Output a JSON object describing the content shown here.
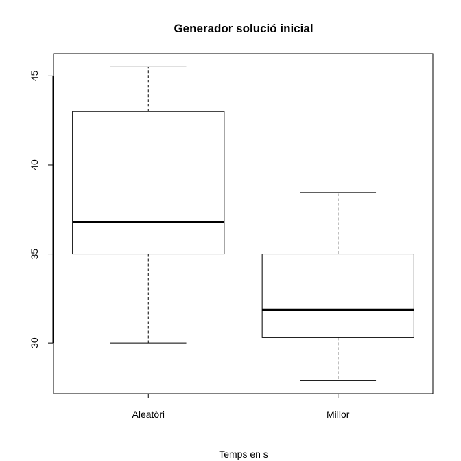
{
  "chart_data": {
    "type": "boxplot",
    "title": "Generador solució inicial",
    "xlabel": "Temps en s",
    "ylabel": "",
    "categories": [
      "Aleatòri",
      "Millor"
    ],
    "boxes": [
      {
        "name": "Aleatòri",
        "whisker_low": 30.0,
        "q1": 35.0,
        "median": 36.8,
        "q3": 43.0,
        "whisker_high": 45.5
      },
      {
        "name": "Millor",
        "whisker_low": 27.9,
        "q1": 30.3,
        "median": 31.85,
        "q3": 35.0,
        "whisker_high": 38.45
      }
    ],
    "y_ticks": [
      30,
      35,
      40,
      45
    ],
    "ylim": [
      27.15,
      46.25
    ],
    "grid": false,
    "legend": "none"
  }
}
